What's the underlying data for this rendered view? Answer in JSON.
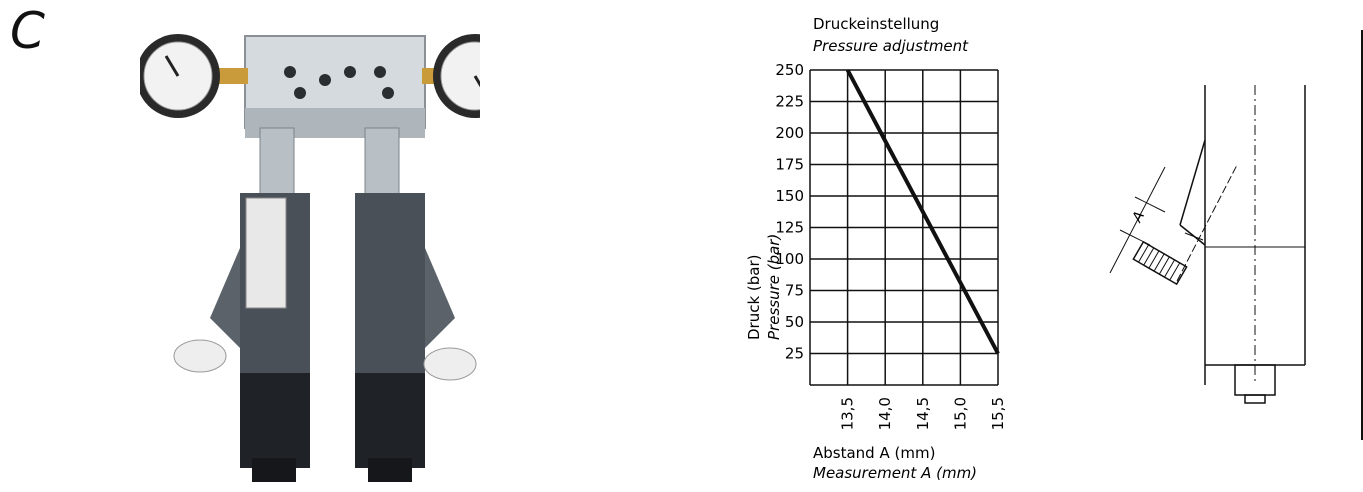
{
  "panel_label": "C",
  "chart_data": {
    "type": "line",
    "title": "Druckeinstellung",
    "subtitle": "Pressure adjustment",
    "xlabel": "Abstand A (mm)",
    "xlabel_en": "Measurement A (mm)",
    "ylabel": "Druck (bar)",
    "ylabel_en": "Pressure (bar)",
    "x_ticks": [
      "13,5",
      "14,0",
      "14,5",
      "15,0",
      "15,5"
    ],
    "y_ticks": [
      "25",
      "50",
      "75",
      "100",
      "125",
      "150",
      "175",
      "200",
      "225",
      "250"
    ],
    "xlim": [
      13.0,
      15.5
    ],
    "ylim": [
      0,
      250
    ],
    "grid": true,
    "series": [
      {
        "x": [
          13.5,
          15.5
        ],
        "y": [
          250,
          25
        ]
      }
    ]
  },
  "drawing": {
    "dimension_label": "A"
  },
  "colors": {
    "line": "#111111",
    "grid": "#111111",
    "metal": "#c9cfd4",
    "dark": "#3f454c"
  }
}
